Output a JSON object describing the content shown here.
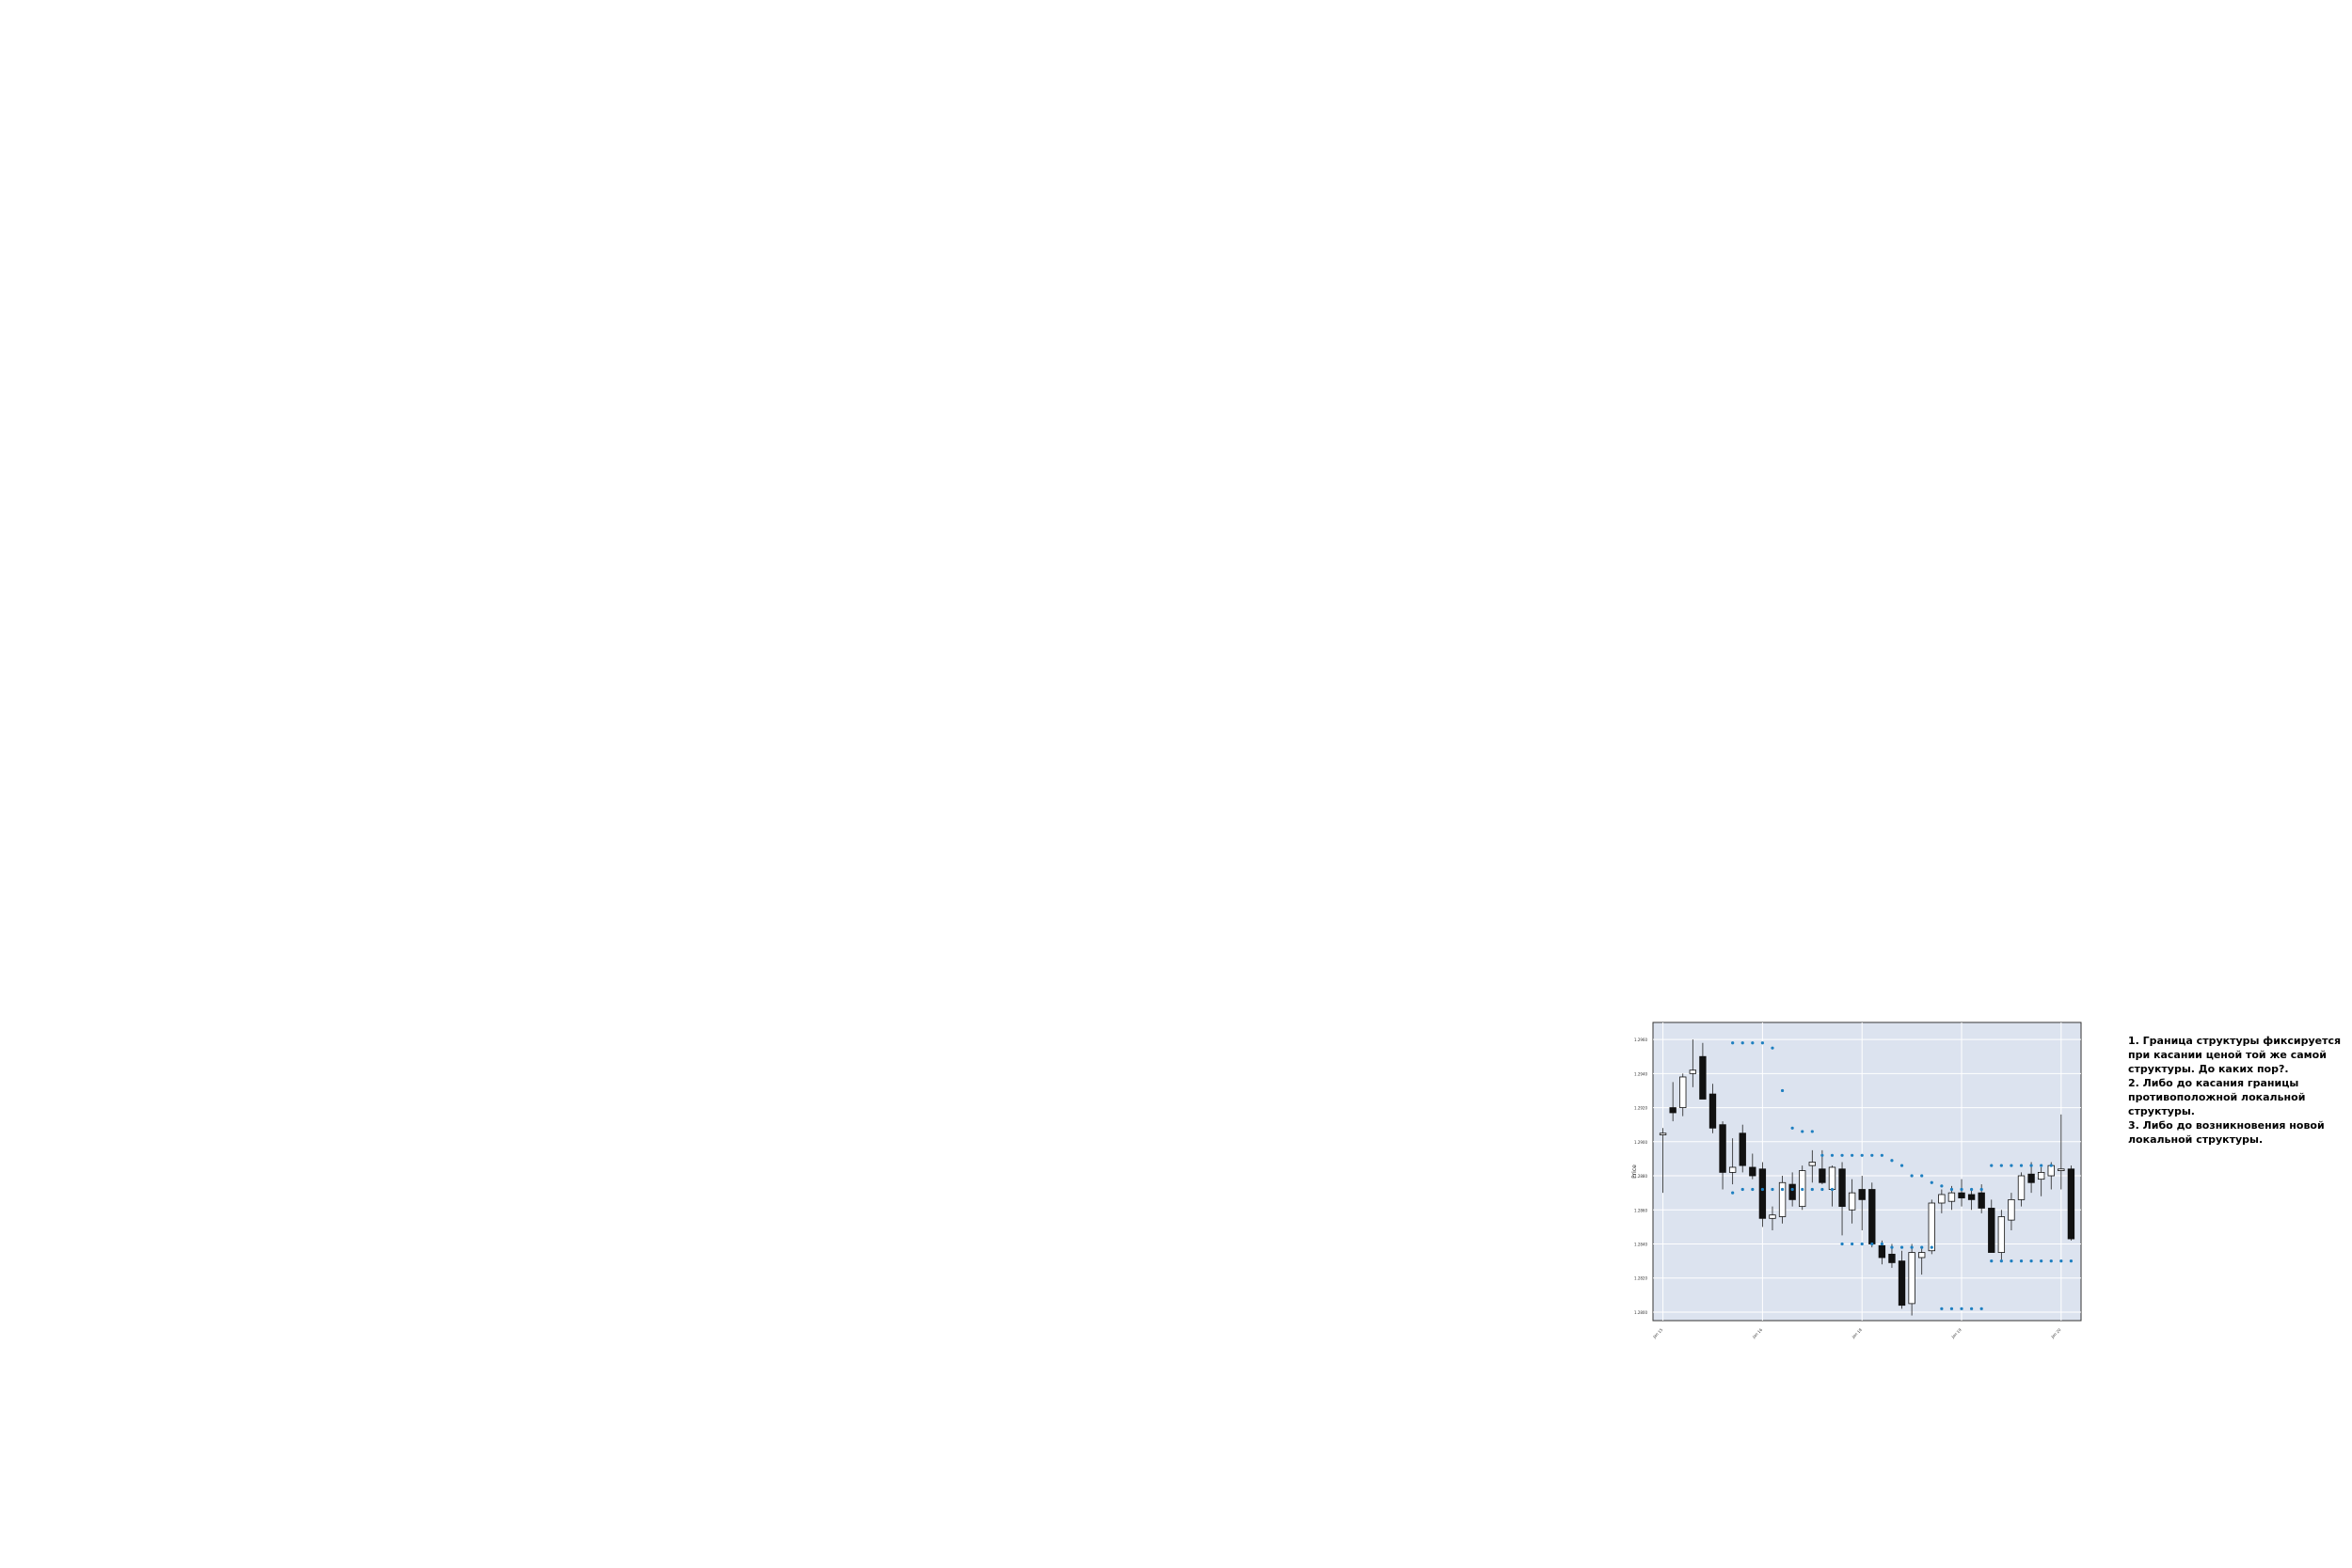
{
  "chart_data": {
    "type": "candlestick",
    "ylabel": "Price",
    "y_ticks": [
      "1.2960",
      "1.2940",
      "1.2920",
      "1.2900",
      "1.2880",
      "1.2860",
      "1.2840",
      "1.2820",
      "1.2800"
    ],
    "x_ticks": [
      "Jan 15",
      "Jan 16",
      "Jan 18",
      "Jan 19",
      "Jan 20"
    ],
    "grid": true,
    "ylim": [
      1.2795,
      1.297
    ],
    "candles": [
      {
        "o": 1.2904,
        "h": 1.2908,
        "l": 1.287,
        "c": 1.2905
      },
      {
        "o": 1.292,
        "h": 1.2935,
        "l": 1.2912,
        "c": 1.2917
      },
      {
        "o": 1.292,
        "h": 1.294,
        "l": 1.2915,
        "c": 1.2938
      },
      {
        "o": 1.294,
        "h": 1.296,
        "l": 1.2932,
        "c": 1.2942
      },
      {
        "o": 1.295,
        "h": 1.2958,
        "l": 1.2925,
        "c": 1.2925
      },
      {
        "o": 1.2928,
        "h": 1.2934,
        "l": 1.2905,
        "c": 1.2908
      },
      {
        "o": 1.291,
        "h": 1.2912,
        "l": 1.2872,
        "c": 1.2882
      },
      {
        "o": 1.2882,
        "h": 1.2902,
        "l": 1.2875,
        "c": 1.2885
      },
      {
        "o": 1.2905,
        "h": 1.291,
        "l": 1.2882,
        "c": 1.2886
      },
      {
        "o": 1.2885,
        "h": 1.2893,
        "l": 1.2878,
        "c": 1.288
      },
      {
        "o": 1.2884,
        "h": 1.2888,
        "l": 1.285,
        "c": 1.2855
      },
      {
        "o": 1.2855,
        "h": 1.2862,
        "l": 1.2848,
        "c": 1.2857
      },
      {
        "o": 1.2856,
        "h": 1.288,
        "l": 1.2852,
        "c": 1.2876
      },
      {
        "o": 1.2875,
        "h": 1.2882,
        "l": 1.2862,
        "c": 1.2866
      },
      {
        "o": 1.2862,
        "h": 1.2886,
        "l": 1.286,
        "c": 1.2883
      },
      {
        "o": 1.2886,
        "h": 1.2895,
        "l": 1.2876,
        "c": 1.2888
      },
      {
        "o": 1.2884,
        "h": 1.2895,
        "l": 1.2875,
        "c": 1.2876
      },
      {
        "o": 1.2872,
        "h": 1.2886,
        "l": 1.2862,
        "c": 1.2885
      },
      {
        "o": 1.2884,
        "h": 1.2888,
        "l": 1.2845,
        "c": 1.2862
      },
      {
        "o": 1.286,
        "h": 1.2878,
        "l": 1.2852,
        "c": 1.287
      },
      {
        "o": 1.2872,
        "h": 1.288,
        "l": 1.2848,
        "c": 1.2866
      },
      {
        "o": 1.2872,
        "h": 1.2876,
        "l": 1.2838,
        "c": 1.284
      },
      {
        "o": 1.2839,
        "h": 1.2842,
        "l": 1.2828,
        "c": 1.2832
      },
      {
        "o": 1.2834,
        "h": 1.284,
        "l": 1.2826,
        "c": 1.2829
      },
      {
        "o": 1.283,
        "h": 1.2836,
        "l": 1.2802,
        "c": 1.2804
      },
      {
        "o": 1.2805,
        "h": 1.284,
        "l": 1.2798,
        "c": 1.2835
      },
      {
        "o": 1.2832,
        "h": 1.2838,
        "l": 1.2822,
        "c": 1.2835
      },
      {
        "o": 1.2836,
        "h": 1.2866,
        "l": 1.2834,
        "c": 1.2864
      },
      {
        "o": 1.2864,
        "h": 1.2872,
        "l": 1.2858,
        "c": 1.2869
      },
      {
        "o": 1.2865,
        "h": 1.2874,
        "l": 1.286,
        "c": 1.287
      },
      {
        "o": 1.287,
        "h": 1.2878,
        "l": 1.2862,
        "c": 1.2867
      },
      {
        "o": 1.2869,
        "h": 1.2872,
        "l": 1.286,
        "c": 1.2866
      },
      {
        "o": 1.287,
        "h": 1.2875,
        "l": 1.2858,
        "c": 1.2861
      },
      {
        "o": 1.2861,
        "h": 1.2866,
        "l": 1.2835,
        "c": 1.2835
      },
      {
        "o": 1.2835,
        "h": 1.286,
        "l": 1.283,
        "c": 1.2856
      },
      {
        "o": 1.2854,
        "h": 1.287,
        "l": 1.2848,
        "c": 1.2866
      },
      {
        "o": 1.2866,
        "h": 1.2882,
        "l": 1.2862,
        "c": 1.288
      },
      {
        "o": 1.2881,
        "h": 1.2888,
        "l": 1.287,
        "c": 1.2876
      },
      {
        "o": 1.2878,
        "h": 1.2885,
        "l": 1.2868,
        "c": 1.2882
      },
      {
        "o": 1.288,
        "h": 1.2888,
        "l": 1.2872,
        "c": 1.2886
      },
      {
        "o": 1.2883,
        "h": 1.2916,
        "l": 1.2872,
        "c": 1.2884
      },
      {
        "o": 1.2884,
        "h": 1.2886,
        "l": 1.2842,
        "c": 1.2843
      }
    ],
    "upper_dots": [
      null,
      null,
      null,
      null,
      null,
      null,
      null,
      1.2958,
      1.2958,
      1.2958,
      1.2958,
      1.2955,
      1.293,
      1.2908,
      1.2906,
      1.2906,
      1.2892,
      1.2892,
      1.2892,
      1.2892,
      1.2892,
      1.2892,
      1.2892,
      1.2889,
      1.2886,
      1.288,
      1.288,
      1.2876,
      1.2874,
      1.2872,
      1.2872,
      1.2872,
      1.2872,
      1.2886,
      1.2886,
      1.2886,
      1.2886,
      1.2886,
      1.2886,
      1.2886,
      null,
      null
    ],
    "lower_dots": [
      null,
      null,
      null,
      null,
      null,
      null,
      null,
      1.287,
      1.2872,
      1.2872,
      1.2872,
      1.2872,
      1.2872,
      1.2872,
      1.2872,
      1.2872,
      1.2872,
      1.2872,
      1.284,
      1.284,
      1.284,
      1.284,
      1.284,
      1.2838,
      1.2838,
      1.2838,
      1.2838,
      1.2838,
      1.2802,
      1.2802,
      1.2802,
      1.2802,
      1.2802,
      1.283,
      1.283,
      1.283,
      1.283,
      1.283,
      1.283,
      1.283,
      1.283,
      1.283
    ]
  },
  "note": {
    "lines": [
      "1. Граница структуры фиксируется при касании ценой той же самой структуры. До каких пор?.",
      "2. Либо до касания границы противоположной локальной структуры.",
      "3. Либо до возникновения новой локальной структуры."
    ]
  },
  "colors": {
    "panel_bg": "#dce3ef",
    "grid": "#ffffff",
    "bear": "#111111",
    "bull": "#ffffff",
    "dot": "#1e7fc0"
  }
}
